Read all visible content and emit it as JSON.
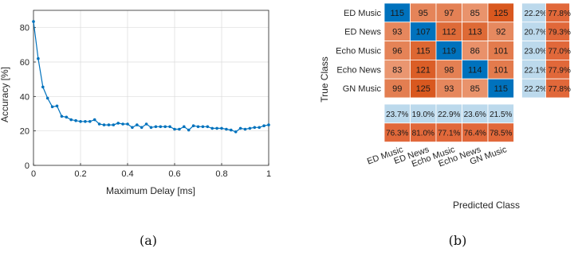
{
  "chart_data": [
    {
      "type": "line",
      "xlabel": "Maximum Delay [ms]",
      "ylabel": "Accuracy [%]",
      "xlim": [
        0,
        1
      ],
      "ylim": [
        0,
        90
      ],
      "xticks": [
        "0",
        "0.2",
        "0.4",
        "0.6",
        "0.8",
        "1"
      ],
      "yticks": [
        "0",
        "20",
        "40",
        "60",
        "80"
      ],
      "grid": true,
      "color": "#0072BD",
      "x": [
        0,
        0.02,
        0.04,
        0.06,
        0.08,
        0.1,
        0.12,
        0.14,
        0.16,
        0.18,
        0.2,
        0.22,
        0.24,
        0.26,
        0.28,
        0.3,
        0.32,
        0.34,
        0.36,
        0.38,
        0.4,
        0.42,
        0.44,
        0.46,
        0.48,
        0.5,
        0.52,
        0.54,
        0.56,
        0.58,
        0.6,
        0.62,
        0.64,
        0.66,
        0.68,
        0.7,
        0.72,
        0.74,
        0.76,
        0.78,
        0.8,
        0.82,
        0.84,
        0.86,
        0.88,
        0.9,
        0.92,
        0.94,
        0.96,
        0.98,
        1.0
      ],
      "y": [
        83.5,
        62,
        45.5,
        39,
        34,
        34.5,
        28.5,
        28,
        26.5,
        26,
        25.5,
        25.5,
        25.5,
        26.5,
        24,
        23.5,
        23.5,
        23.5,
        24.5,
        24,
        24,
        22,
        23.5,
        22,
        24,
        22,
        22.5,
        22.5,
        22.5,
        22.5,
        21,
        21,
        22.5,
        20.5,
        23,
        22.5,
        22.5,
        22.5,
        21.5,
        21.5,
        21.5,
        21,
        20.5,
        19.5,
        21.5,
        21,
        21.5,
        22,
        22,
        23,
        23.5
      ],
      "caption": "(a)"
    },
    {
      "type": "heatmap",
      "xlabel": "Predicted Class",
      "ylabel": "True Class",
      "rows": [
        "ED Music",
        "ED News",
        "Echo Music",
        "Echo News",
        "GN Music"
      ],
      "cols": [
        "ED Music",
        "ED News",
        "Echo Music",
        "Echo News",
        "GN Music"
      ],
      "matrix": [
        [
          115,
          95,
          97,
          85,
          125
        ],
        [
          93,
          107,
          112,
          113,
          92
        ],
        [
          96,
          115,
          119,
          86,
          101
        ],
        [
          83,
          121,
          98,
          114,
          101
        ],
        [
          99,
          125,
          93,
          85,
          115
        ]
      ],
      "row_summary": [
        [
          "22.2%",
          "77.8%"
        ],
        [
          "20.7%",
          "79.3%"
        ],
        [
          "23.0%",
          "77.0%"
        ],
        [
          "22.1%",
          "77.9%"
        ],
        [
          "22.2%",
          "77.8%"
        ]
      ],
      "col_summary": [
        [
          "23.7%",
          "19.0%",
          "22.9%",
          "23.6%",
          "21.5%"
        ],
        [
          "76.3%",
          "81.0%",
          "77.1%",
          "76.4%",
          "78.5%"
        ]
      ],
      "colors": {
        "correct": "#0072BD",
        "incorrect_high": "#D9581F",
        "incorrect_low": "#F3B79C",
        "summary_correct": "#BCD9EC",
        "summary_incorrect": "#E1683A"
      },
      "caption": "(b)"
    }
  ]
}
